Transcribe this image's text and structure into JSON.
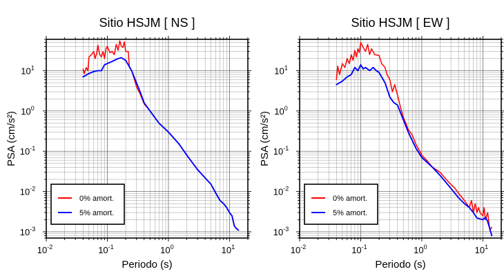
{
  "chart_data": [
    {
      "type": "line",
      "title": "Sitio HSJM [ NS ]",
      "xlabel": "Periodo (s)",
      "ylabel": "PSA (cm/s²)",
      "xscale": "log",
      "yscale": "log",
      "xlim": [
        0.01,
        20
      ],
      "ylim": [
        0.0007,
        60
      ],
      "grid": true,
      "legend_position": "bottom-left",
      "x_ticks": [
        {
          "base": "10",
          "exp": "-2"
        },
        {
          "base": "10",
          "exp": "-1"
        },
        {
          "base": "10",
          "exp": "0"
        },
        {
          "base": "10",
          "exp": "1"
        }
      ],
      "y_ticks": [
        {
          "base": "10",
          "exp": "-3"
        },
        {
          "base": "10",
          "exp": "-2"
        },
        {
          "base": "10",
          "exp": "-1"
        },
        {
          "base": "10",
          "exp": "0"
        },
        {
          "base": "10",
          "exp": "1"
        }
      ],
      "series": [
        {
          "name": "0% amort.",
          "color": "#ff0000",
          "points": [
            [
              0.04,
              11
            ],
            [
              0.042,
              8.5
            ],
            [
              0.045,
              12
            ],
            [
              0.048,
              10
            ],
            [
              0.05,
              22
            ],
            [
              0.055,
              25
            ],
            [
              0.06,
              30
            ],
            [
              0.063,
              20
            ],
            [
              0.067,
              27
            ],
            [
              0.07,
              43
            ],
            [
              0.075,
              25
            ],
            [
              0.08,
              22
            ],
            [
              0.085,
              30
            ],
            [
              0.09,
              20
            ],
            [
              0.095,
              35
            ],
            [
              0.1,
              40
            ],
            [
              0.11,
              28
            ],
            [
              0.12,
              30
            ],
            [
              0.13,
              25
            ],
            [
              0.14,
              45
            ],
            [
              0.15,
              32
            ],
            [
              0.16,
              55
            ],
            [
              0.17,
              40
            ],
            [
              0.18,
              38
            ],
            [
              0.19,
              52
            ],
            [
              0.2,
              30
            ],
            [
              0.22,
              30
            ],
            [
              0.23,
              12
            ],
            [
              0.25,
              10
            ],
            [
              0.27,
              7
            ],
            [
              0.3,
              4
            ],
            [
              0.35,
              2.5
            ],
            [
              0.4,
              1.5
            ],
            [
              0.5,
              1.0
            ],
            [
              0.7,
              0.5
            ],
            [
              1.0,
              0.3
            ],
            [
              1.5,
              0.15
            ],
            [
              2,
              0.08
            ],
            [
              3,
              0.035
            ],
            [
              5,
              0.015
            ],
            [
              6,
              0.009
            ],
            [
              7,
              0.006
            ],
            [
              8,
              0.005
            ],
            [
              9,
              0.004
            ],
            [
              10,
              0.003
            ],
            [
              11,
              0.0025
            ],
            [
              12,
              0.0014
            ],
            [
              13,
              0.0012
            ],
            [
              14,
              0.0011
            ]
          ]
        },
        {
          "name": "5% amort.",
          "color": "#0000ff",
          "points": [
            [
              0.04,
              7
            ],
            [
              0.05,
              8.5
            ],
            [
              0.06,
              9.5
            ],
            [
              0.07,
              10
            ],
            [
              0.08,
              10
            ],
            [
              0.09,
              14
            ],
            [
              0.1,
              15
            ],
            [
              0.12,
              17
            ],
            [
              0.15,
              20
            ],
            [
              0.17,
              21
            ],
            [
              0.2,
              18
            ],
            [
              0.25,
              10
            ],
            [
              0.3,
              5
            ],
            [
              0.35,
              2.8
            ],
            [
              0.4,
              1.6
            ],
            [
              0.5,
              1.0
            ],
            [
              0.7,
              0.5
            ],
            [
              1.0,
              0.3
            ],
            [
              1.5,
              0.15
            ],
            [
              2,
              0.08
            ],
            [
              3,
              0.035
            ],
            [
              5,
              0.015
            ],
            [
              6,
              0.009
            ],
            [
              7,
              0.006
            ],
            [
              8,
              0.005
            ],
            [
              9,
              0.004
            ],
            [
              10,
              0.003
            ],
            [
              11,
              0.0025
            ],
            [
              12,
              0.0014
            ],
            [
              13,
              0.0012
            ],
            [
              14,
              0.0011
            ]
          ]
        }
      ]
    },
    {
      "type": "line",
      "title": "Sitio HSJM [ EW ]",
      "xlabel": "Periodo (s)",
      "ylabel": "PSA (cm/s²)",
      "xscale": "log",
      "yscale": "log",
      "xlim": [
        0.01,
        20
      ],
      "ylim": [
        0.0007,
        60
      ],
      "grid": true,
      "legend_position": "bottom-left",
      "x_ticks": [
        {
          "base": "10",
          "exp": "-2"
        },
        {
          "base": "10",
          "exp": "-1"
        },
        {
          "base": "10",
          "exp": "0"
        },
        {
          "base": "10",
          "exp": "1"
        }
      ],
      "y_ticks": [
        {
          "base": "10",
          "exp": "-3"
        },
        {
          "base": "10",
          "exp": "-2"
        },
        {
          "base": "10",
          "exp": "-1"
        },
        {
          "base": "10",
          "exp": "0"
        },
        {
          "base": "10",
          "exp": "1"
        }
      ],
      "series": [
        {
          "name": "0% amort.",
          "color": "#ff0000",
          "points": [
            [
              0.04,
              6
            ],
            [
              0.042,
              13
            ],
            [
              0.045,
              8
            ],
            [
              0.05,
              15
            ],
            [
              0.055,
              12
            ],
            [
              0.06,
              20
            ],
            [
              0.065,
              15
            ],
            [
              0.07,
              25
            ],
            [
              0.075,
              18
            ],
            [
              0.08,
              32
            ],
            [
              0.085,
              22
            ],
            [
              0.09,
              35
            ],
            [
              0.095,
              28
            ],
            [
              0.1,
              50
            ],
            [
              0.11,
              38
            ],
            [
              0.12,
              30
            ],
            [
              0.13,
              45
            ],
            [
              0.14,
              25
            ],
            [
              0.15,
              35
            ],
            [
              0.17,
              25
            ],
            [
              0.2,
              24
            ],
            [
              0.22,
              15
            ],
            [
              0.25,
              12
            ],
            [
              0.27,
              8
            ],
            [
              0.3,
              6
            ],
            [
              0.33,
              3
            ],
            [
              0.36,
              4.5
            ],
            [
              0.4,
              2.5
            ],
            [
              0.45,
              1.2
            ],
            [
              0.5,
              0.7
            ],
            [
              0.6,
              0.35
            ],
            [
              0.7,
              0.25
            ],
            [
              0.8,
              0.15
            ],
            [
              1.0,
              0.08
            ],
            [
              1.2,
              0.06
            ],
            [
              1.5,
              0.04
            ],
            [
              2,
              0.03
            ],
            [
              2.5,
              0.02
            ],
            [
              3,
              0.015
            ],
            [
              3.5,
              0.012
            ],
            [
              4,
              0.009
            ],
            [
              5,
              0.006
            ],
            [
              6,
              0.004
            ],
            [
              6.5,
              0.006
            ],
            [
              7,
              0.003
            ],
            [
              7.5,
              0.005
            ],
            [
              8,
              0.003
            ],
            [
              8.5,
              0.004
            ],
            [
              9,
              0.003
            ],
            [
              10,
              0.0025
            ],
            [
              10.5,
              0.004
            ],
            [
              11,
              0.002
            ],
            [
              12,
              0.003
            ],
            [
              13,
              0.0011
            ],
            [
              14,
              0.0013
            ]
          ]
        },
        {
          "name": "5% amort.",
          "color": "#0000ff",
          "points": [
            [
              0.04,
              4.5
            ],
            [
              0.05,
              5.5
            ],
            [
              0.06,
              7
            ],
            [
              0.07,
              8
            ],
            [
              0.08,
              12
            ],
            [
              0.09,
              10
            ],
            [
              0.1,
              14
            ],
            [
              0.11,
              11
            ],
            [
              0.12,
              12
            ],
            [
              0.14,
              10
            ],
            [
              0.16,
              12
            ],
            [
              0.18,
              10
            ],
            [
              0.2,
              9
            ],
            [
              0.25,
              5
            ],
            [
              0.3,
              2.2
            ],
            [
              0.35,
              1.6
            ],
            [
              0.4,
              1.4
            ],
            [
              0.5,
              0.6
            ],
            [
              0.6,
              0.3
            ],
            [
              0.8,
              0.12
            ],
            [
              1.0,
              0.07
            ],
            [
              1.5,
              0.04
            ],
            [
              2,
              0.025
            ],
            [
              3,
              0.012
            ],
            [
              4,
              0.007
            ],
            [
              5,
              0.005
            ],
            [
              6,
              0.004
            ],
            [
              7,
              0.003
            ],
            [
              8,
              0.0022
            ],
            [
              10,
              0.002
            ],
            [
              11,
              0.0023
            ],
            [
              12,
              0.0018
            ],
            [
              13,
              0.0012
            ],
            [
              14,
              0.0008
            ]
          ]
        }
      ]
    }
  ]
}
